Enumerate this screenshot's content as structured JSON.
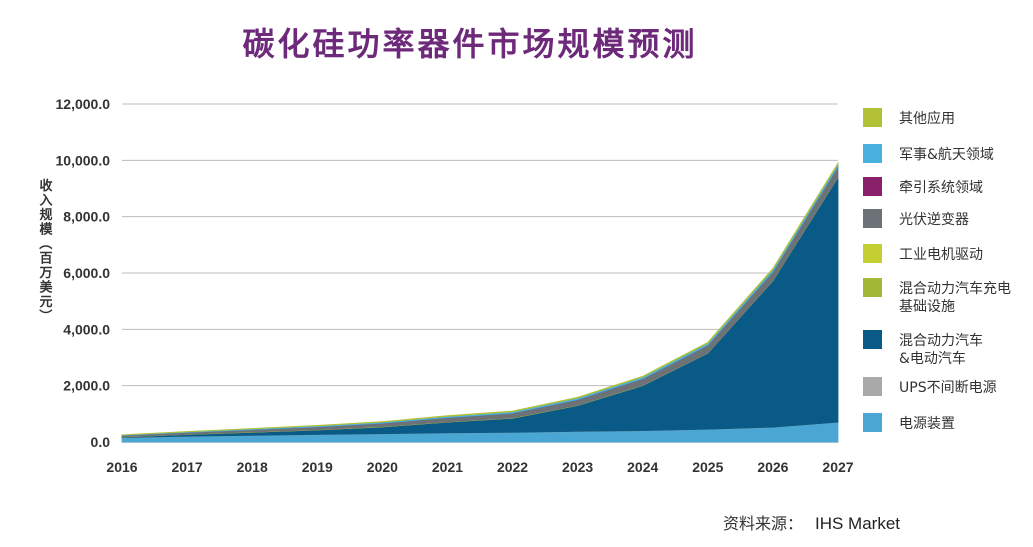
{
  "chart_data": {
    "type": "area",
    "stacked": true,
    "title": "碳化硅功率器件市场规模预测",
    "ylabel": "收入规模（百万美元）",
    "xlabel": "",
    "x": [
      "2016",
      "2017",
      "2018",
      "2019",
      "2020",
      "2021",
      "2022",
      "2023",
      "2024",
      "2025",
      "2026",
      "2027"
    ],
    "ylim": [
      0,
      12000
    ],
    "yticks": [
      "0.0",
      "2,000.0",
      "4,000.0",
      "6,000.0",
      "8,000.0",
      "10,000.0",
      "12,000.0"
    ],
    "grid": true,
    "legend_position": "right",
    "source_label": "资料来源：",
    "source_brand": "IHS Market",
    "series": [
      {
        "name": "电源装置",
        "color": "#4aa6d2",
        "values": [
          150,
          200,
          230,
          260,
          290,
          320,
          340,
          370,
          400,
          450,
          520,
          700
        ]
      },
      {
        "name": "UPS不间断电源",
        "color": "#a9a9a9",
        "values": [
          5,
          5,
          5,
          5,
          5,
          5,
          5,
          5,
          5,
          5,
          5,
          5
        ]
      },
      {
        "name": "混合动力汽车&电动汽车",
        "color": "#0a5a87",
        "values": [
          20,
          60,
          110,
          160,
          240,
          380,
          500,
          920,
          1600,
          2700,
          5200,
          8700
        ]
      },
      {
        "name": "混合动力汽车充电基础设施",
        "color": "#a3b935",
        "values": [
          5,
          5,
          5,
          5,
          5,
          5,
          5,
          5,
          5,
          5,
          5,
          5
        ]
      },
      {
        "name": "工业电机驱动",
        "color": "#c4d032",
        "values": [
          5,
          5,
          5,
          5,
          5,
          5,
          5,
          5,
          5,
          5,
          5,
          5
        ]
      },
      {
        "name": "光伏逆变器",
        "color": "#6c7278",
        "values": [
          40,
          60,
          80,
          100,
          120,
          150,
          170,
          200,
          230,
          270,
          310,
          360
        ]
      },
      {
        "name": "牵引系统领域",
        "color": "#8a1f6a",
        "values": [
          2,
          2,
          2,
          2,
          2,
          2,
          2,
          2,
          2,
          2,
          2,
          2
        ]
      },
      {
        "name": "军事&航天领域",
        "color": "#48b1de",
        "values": [
          20,
          25,
          30,
          35,
          40,
          45,
          50,
          55,
          60,
          70,
          80,
          90
        ]
      },
      {
        "name": "其他应用",
        "color": "#b3c136",
        "values": [
          10,
          12,
          14,
          16,
          18,
          20,
          22,
          25,
          28,
          32,
          36,
          40
        ]
      }
    ]
  }
}
